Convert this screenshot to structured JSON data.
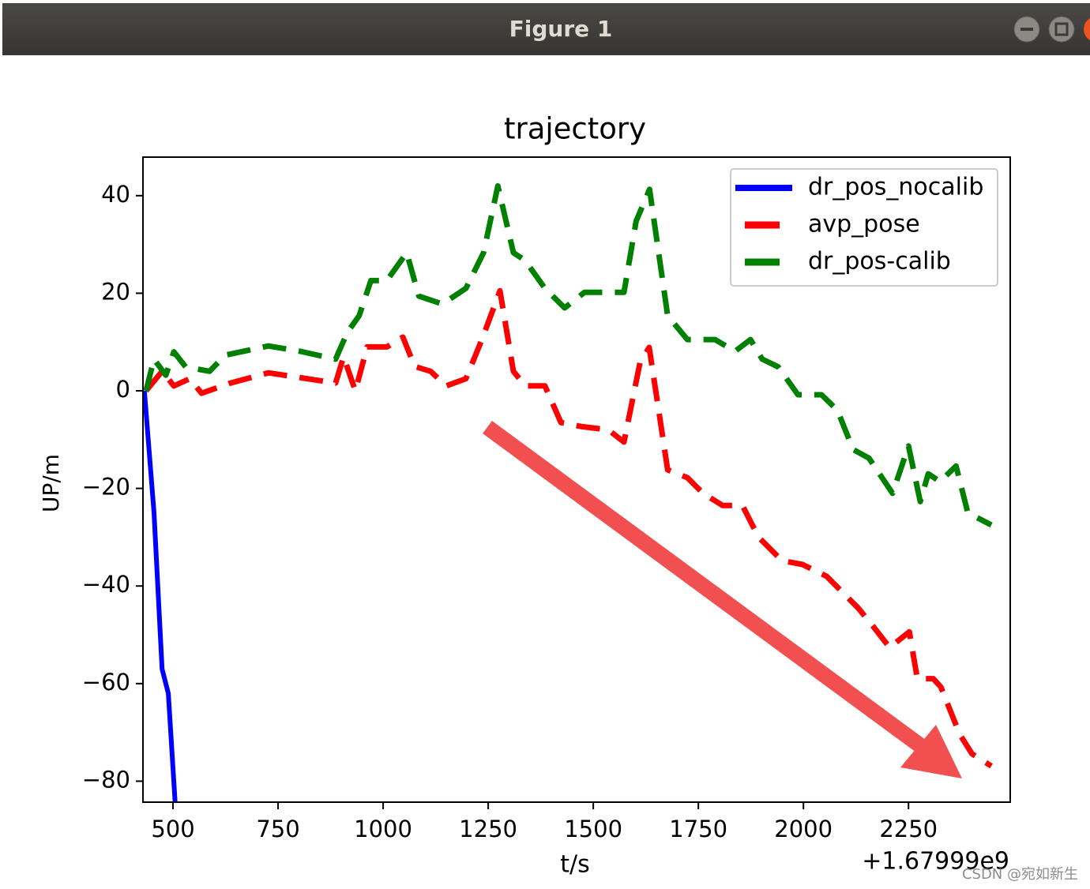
{
  "window": {
    "title": "Figure 1"
  },
  "watermark": "CSDN @宛如新生",
  "chart_data": {
    "type": "line",
    "title": "trajectory",
    "xlabel": "t/s",
    "ylabel": "UP/m",
    "x_offset_label": "+1.67999e9",
    "xlim": [
      428.6,
      2492
    ],
    "ylim": [
      -84.3,
      47.9
    ],
    "xticks": [
      500,
      750,
      1000,
      1250,
      1500,
      1750,
      2000,
      2250
    ],
    "yticks": [
      {
        "value": -80,
        "label": "−80"
      },
      {
        "value": -60,
        "label": "−60"
      },
      {
        "value": -40,
        "label": "−40"
      },
      {
        "value": -20,
        "label": "−20"
      },
      0,
      20,
      40
    ],
    "legend": "upper right",
    "grid": false,
    "series": [
      {
        "name": "dr_pos_nocalib",
        "color": "#0000ff",
        "style": "solid",
        "x": [
          432,
          455,
          474,
          489,
          505
        ],
        "values": [
          0,
          -25,
          -57,
          -62,
          -84.3
        ]
      },
      {
        "name": "avp_pose",
        "color": "#ff0000",
        "style": "dashed",
        "x": [
          436,
          474,
          502,
          540,
          568,
          633,
          727,
          803,
          887,
          906,
          934,
          962,
          1009,
          1047,
          1075,
          1113,
          1150,
          1197,
          1235,
          1278,
          1310,
          1338,
          1385,
          1423,
          1470,
          1536,
          1573,
          1611,
          1633,
          1677,
          1724,
          1761,
          1808,
          1855,
          1893,
          1949,
          1998,
          2055,
          2130,
          2168,
          2205,
          2252,
          2271,
          2309,
          2327,
          2372,
          2401,
          2447
        ],
        "values": [
          0,
          4,
          1,
          2.5,
          -0.5,
          1.5,
          3.7,
          2.7,
          1.6,
          7,
          0,
          9,
          9,
          11,
          5,
          4,
          1,
          2.5,
          10.5,
          20.5,
          4,
          1,
          1,
          -6.5,
          -7.3,
          -8,
          -10.5,
          5.7,
          8.9,
          -16.2,
          -17.8,
          -21,
          -23.5,
          -23.5,
          -30,
          -34.8,
          -35.6,
          -38,
          -44.5,
          -48.5,
          -52.6,
          -49.4,
          -59,
          -59,
          -60.7,
          -70.4,
          -74.4,
          -76.9
        ]
      },
      {
        "name": "dr_pos-calib",
        "color": "#008000",
        "style": "dashed",
        "x": [
          436,
          455,
          483,
          502,
          530,
          587,
          624,
          727,
          803,
          887,
          915,
          943,
          971,
          1009,
          1056,
          1085,
          1141,
          1197,
          1239,
          1273,
          1310,
          1338,
          1385,
          1432,
          1479,
          1573,
          1602,
          1634,
          1677,
          1724,
          1790,
          1837,
          1874,
          1902,
          1940,
          1987,
          2043,
          2081,
          2118,
          2156,
          2212,
          2250,
          2278,
          2297,
          2325,
          2363,
          2391,
          2447
        ],
        "values": [
          0,
          6.5,
          3.2,
          8,
          4.9,
          4,
          7.3,
          9.2,
          8.1,
          6.5,
          12,
          15.4,
          22.6,
          22.6,
          28.3,
          19.4,
          17.8,
          21,
          28.3,
          42,
          28.3,
          26.7,
          21,
          17,
          20.2,
          20.2,
          34.8,
          41.3,
          15.4,
          10.5,
          10.5,
          8.1,
          10.5,
          6.5,
          4.9,
          -0.8,
          -0.8,
          -4,
          -12,
          -13.8,
          -21,
          -11.3,
          -22.7,
          -17,
          -18.6,
          -15.4,
          -25,
          -27.5
        ]
      }
    ]
  }
}
